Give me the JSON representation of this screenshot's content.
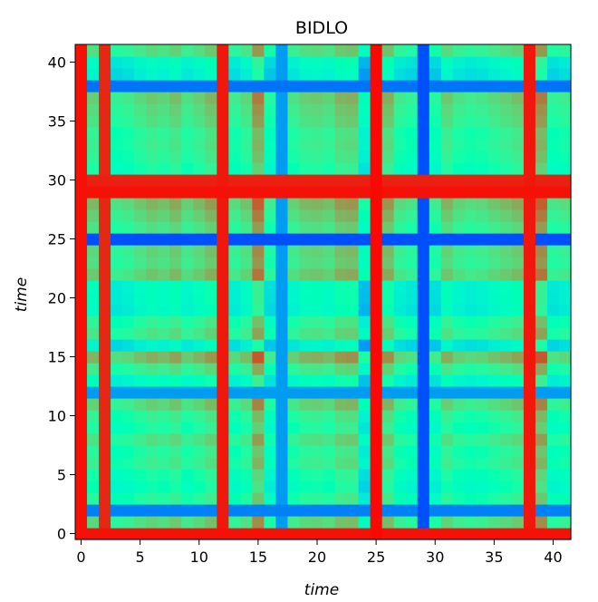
{
  "chart_data": {
    "type": "heatmap",
    "title": "BIDLO",
    "xlabel": "time",
    "ylabel": "time",
    "x_range": [
      0,
      41
    ],
    "y_range": [
      0,
      41
    ],
    "xticks": [
      0,
      5,
      10,
      15,
      20,
      25,
      30,
      35,
      40
    ],
    "yticks": [
      0,
      5,
      10,
      15,
      20,
      25,
      30,
      35,
      40
    ],
    "colormap": "rainbow",
    "grid": false,
    "values": {
      "description_of_generation": "",
      "row_profile": [
        0.98,
        0.75,
        0.12,
        0.55,
        0.42,
        0.48,
        0.62,
        0.56,
        0.7,
        0.52,
        0.6,
        0.78,
        0.16,
        0.35,
        0.66,
        0.9,
        0.22,
        0.68,
        0.58,
        0.3,
        0.33,
        0.34,
        0.82,
        0.72,
        0.76,
        0.05,
        0.7,
        0.8,
        0.88,
        0.98,
        0.96,
        0.5,
        0.58,
        0.62,
        0.6,
        0.7,
        0.74,
        0.8,
        0.1,
        0.22,
        0.3,
        0.72
      ],
      "col_profile": [
        0.98,
        0.6,
        0.95,
        0.42,
        0.46,
        0.55,
        0.62,
        0.58,
        0.66,
        0.52,
        0.6,
        0.7,
        0.97,
        0.45,
        0.56,
        0.88,
        0.35,
        0.16,
        0.5,
        0.6,
        0.62,
        0.58,
        0.7,
        0.72,
        0.2,
        0.99,
        0.72,
        0.46,
        0.4,
        0.05,
        0.35,
        0.62,
        0.5,
        0.45,
        0.48,
        0.55,
        0.6,
        0.66,
        0.97,
        0.88,
        0.4,
        0.45
      ]
    }
  }
}
